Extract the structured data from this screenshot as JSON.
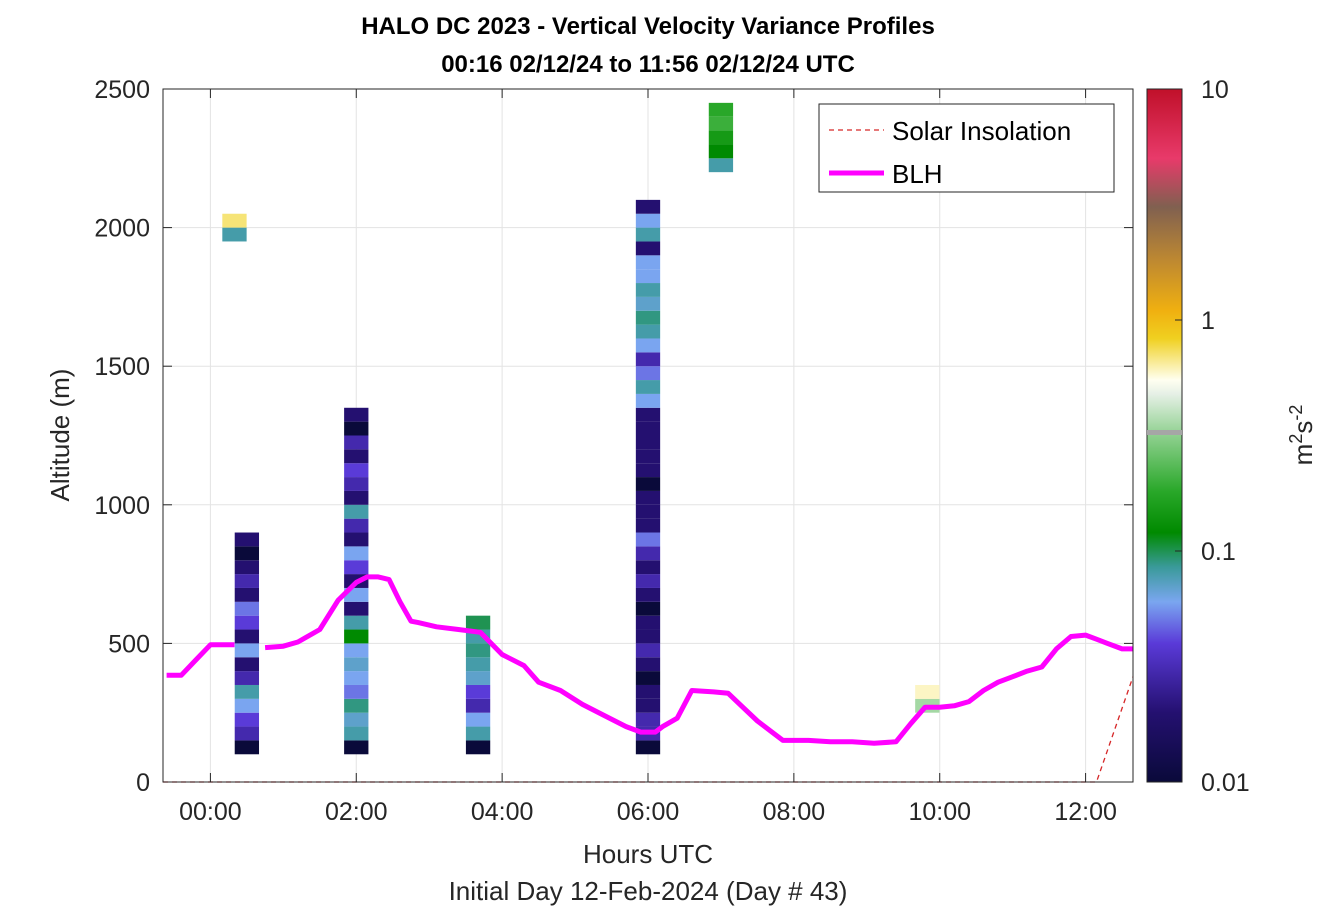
{
  "chart_data": {
    "type": "heatmap",
    "title": "HALO DC 2023 - Vertical Velocity Variance Profiles",
    "subtitle": "00:16 02/12/24 to 11:56 02/12/24  UTC",
    "xlabel": "Hours UTC",
    "xlabel2": "Initial Day 12-Feb-2024 (Day # 43)",
    "ylabel": "Altitude (m)",
    "xlim": [
      -0.65,
      12.65
    ],
    "ylim": [
      0,
      2500
    ],
    "x_ticks": [
      0,
      2,
      4,
      6,
      8,
      10,
      12
    ],
    "x_tick_labels": [
      "00:00",
      "02:00",
      "04:00",
      "06:00",
      "08:00",
      "10:00",
      "12:00"
    ],
    "y_ticks": [
      0,
      500,
      1000,
      1500,
      2000,
      2500
    ],
    "y_tick_labels": [
      "0",
      "500",
      "1000",
      "1500",
      "2000",
      "2500"
    ],
    "grid": true,
    "colorbar": {
      "scale": "log",
      "range": [
        0.01,
        10
      ],
      "ticks": [
        0.01,
        0.1,
        1,
        10
      ],
      "tick_labels": [
        "0.01",
        "0.1",
        "1",
        "10"
      ],
      "label": "m²s⁻²",
      "label_base": "m",
      "label_sup1": "2",
      "label_mid": "s",
      "label_sup2": "-2"
    },
    "heatmap_bin_width_h": 0.3333,
    "heatmap_bin_height_m": 50,
    "heatmap_columns": [
      {
        "t": 0.5,
        "bottom": 100,
        "values": [
          0.01,
          0.03,
          0.04,
          0.06,
          0.08,
          0.03,
          0.02,
          0.06,
          0.02,
          0.04,
          0.05,
          0.02,
          0.03,
          0.02,
          0.01,
          0.02
        ]
      },
      {
        "t": 2.0,
        "bottom": 100,
        "values": [
          0.01,
          0.08,
          0.07,
          0.09,
          0.05,
          0.06,
          0.07,
          0.06,
          0.12,
          0.08,
          0.02,
          0.06,
          0.02,
          0.04,
          0.06,
          0.02,
          0.03,
          0.08,
          0.02,
          0.03,
          0.04,
          0.02,
          0.03,
          0.01,
          0.02
        ]
      },
      {
        "t": 3.67,
        "bottom": 100,
        "values": [
          0.01,
          0.08,
          0.06,
          0.03,
          0.04,
          0.07,
          0.08,
          0.09,
          0.08,
          0.1
        ]
      },
      {
        "t": 6.0,
        "bottom": 100,
        "values": [
          0.01,
          0.03,
          0.03,
          0.02,
          0.02,
          0.01,
          0.02,
          0.03,
          0.02,
          0.02,
          0.01,
          0.02,
          0.03,
          0.02,
          0.03,
          0.05,
          0.02,
          0.02,
          0.02,
          0.01,
          0.02,
          0.02,
          0.02,
          0.02,
          0.02,
          0.06,
          0.08,
          0.05,
          0.03,
          0.06,
          0.08,
          0.09,
          0.07,
          0.08,
          0.06,
          0.06,
          0.02,
          0.08,
          0.06,
          0.02
        ]
      },
      {
        "t": 7.0,
        "bottom": 2200,
        "values": [
          0.08,
          0.12,
          0.15,
          0.2,
          0.18
        ]
      },
      {
        "t": 9.83,
        "bottom": 250,
        "values": [
          0.35,
          0.6
        ]
      },
      {
        "t": 0.33,
        "bottom": 1950,
        "values": [
          0.08,
          0.7
        ]
      }
    ],
    "series": [
      {
        "name": "Solar Insolation",
        "style": "dashed",
        "color": "#d62728",
        "x": [
          -0.65,
          12.15,
          12.65
        ],
        "y": [
          0,
          0,
          380
        ]
      },
      {
        "name": "BLH",
        "style": "solid",
        "color": "#ff00ff",
        "x": [
          -0.6,
          -0.4,
          -0.2,
          0.0,
          0.2,
          0.33,
          0.55,
          0.75,
          1.0,
          1.2,
          1.5,
          1.75,
          2.0,
          2.15,
          2.3,
          2.45,
          2.6,
          2.75,
          2.85,
          3.1,
          3.4,
          3.7,
          4.0,
          4.3,
          4.5,
          4.8,
          5.1,
          5.4,
          5.7,
          5.9,
          6.1,
          6.2,
          6.4,
          6.6,
          6.9,
          7.1,
          7.3,
          7.5,
          7.7,
          7.85,
          8.0,
          8.2,
          8.5,
          8.8,
          9.1,
          9.4,
          9.6,
          9.8,
          10.0,
          10.2,
          10.4,
          10.6,
          10.8,
          11.0,
          11.2,
          11.4,
          11.6,
          11.8,
          12.0,
          12.15,
          12.3,
          12.5,
          12.65
        ],
        "y": [
          385,
          385,
          440,
          495,
          495,
          495,
          null,
          485,
          490,
          505,
          550,
          655,
          720,
          740,
          740,
          730,
          650,
          580,
          575,
          560,
          550,
          540,
          460,
          420,
          360,
          330,
          280,
          240,
          200,
          180,
          180,
          200,
          230,
          330,
          325,
          320,
          270,
          220,
          180,
          150,
          150,
          150,
          145,
          145,
          140,
          145,
          210,
          270,
          270,
          275,
          290,
          330,
          360,
          380,
          400,
          415,
          480,
          525,
          530,
          515,
          500,
          480,
          480
        ]
      }
    ]
  }
}
